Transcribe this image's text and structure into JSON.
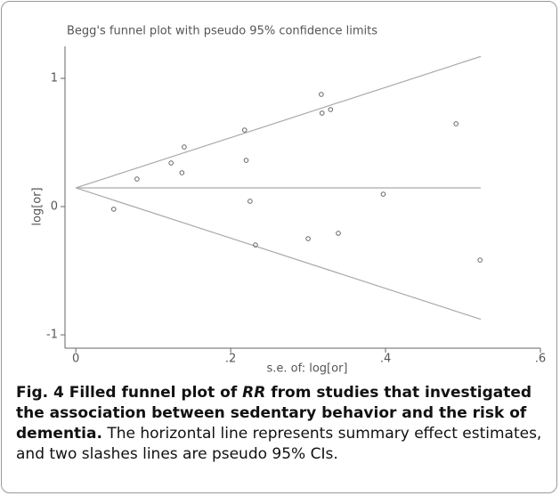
{
  "chart_data": {
    "type": "scatter",
    "title": "Begg's funnel plot with pseudo 95% confidence limits",
    "x_label": "s.e. of: log[or]",
    "y_label": "log[or]",
    "x": [
      0.049,
      0.079,
      0.123,
      0.137,
      0.14,
      0.218,
      0.22,
      0.225,
      0.232,
      0.3,
      0.317,
      0.318,
      0.329,
      0.339,
      0.397,
      0.491,
      0.522
    ],
    "values": [
      -0.02,
      0.215,
      0.34,
      0.264,
      0.465,
      0.597,
      0.361,
      0.042,
      -0.299,
      -0.25,
      0.875,
      0.729,
      0.757,
      -0.208,
      0.097,
      0.646,
      -0.417
    ],
    "color": "#666666",
    "lines": [
      {
        "x": [
          0,
          0.523
        ],
        "y": [
          0.146,
          0.146
        ]
      },
      {
        "x": [
          0,
          0.523
        ],
        "y": [
          0.146,
          1.171
        ]
      },
      {
        "x": [
          0,
          0.523
        ],
        "y": [
          0.146,
          -0.879
        ]
      }
    ],
    "line_color": "#aaaaaa",
    "xlim": [
      -0.014,
      0.6
    ],
    "ylim": [
      -1.104,
      1.25
    ],
    "xticks": [
      0,
      {
        "value": 0.2,
        "label": ".2"
      },
      {
        "value": 0.4,
        "label": ".4"
      },
      {
        "value": 0.6,
        "label": ".6"
      }
    ],
    "yticks": [
      -1,
      0,
      1
    ]
  },
  "caption": {
    "bold_start": "Fig. 4 Filled funnel plot of ",
    "bold_italic": "RR",
    "bold_end": " from studies that investigated the association between sedentary behavior and the risk of dementia.",
    "text": " The horizontal line represents summary effect estimates, and two slashes lines are pseudo 95% CIs."
  }
}
